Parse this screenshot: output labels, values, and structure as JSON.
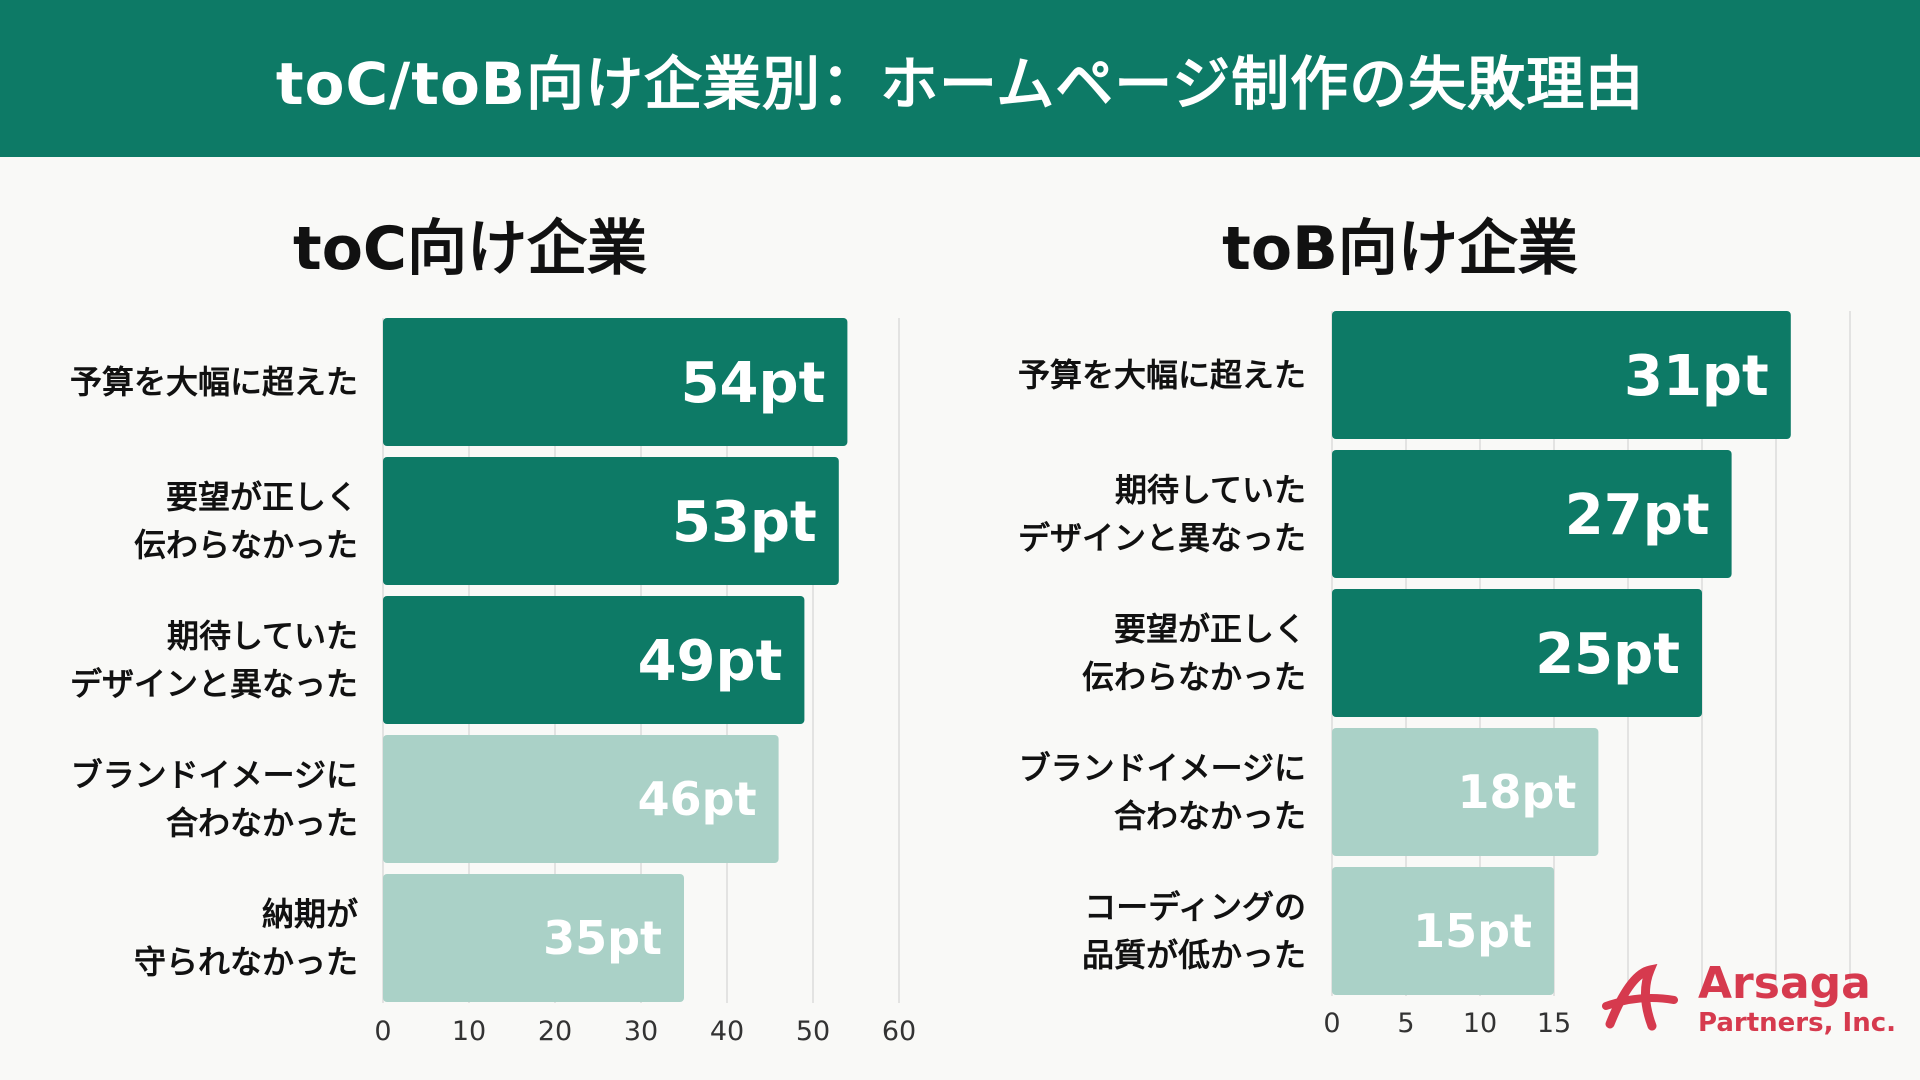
{
  "header": {
    "title": "toC/toB向け企業別：ホームページ制作の失敗理由"
  },
  "colors": {
    "header_bg": "#0d7a66",
    "bar_dark": "#0d7a66",
    "bar_light": "#aad1c7",
    "logo": "#d63a4e"
  },
  "logo": {
    "name": "Arsaga",
    "sub": "Partners, Inc."
  },
  "chart_data": [
    {
      "type": "bar",
      "orientation": "horizontal",
      "title": "toC向け企業",
      "categories": [
        [
          "予算を大幅に超えた"
        ],
        [
          "要望が正しく",
          "伝わらなかった"
        ],
        [
          "期待していた",
          "デザインと異なった"
        ],
        [
          "ブランドイメージに",
          "合わなかった"
        ],
        [
          "納期が",
          "守られなかった"
        ]
      ],
      "values": [
        54,
        53,
        49,
        46,
        35
      ],
      "value_labels": [
        "54pt",
        "53pt",
        "49pt",
        "46pt",
        "35pt"
      ],
      "highlight": [
        true,
        true,
        true,
        false,
        false
      ],
      "xlim": [
        0,
        60
      ],
      "xticks": [
        0,
        10,
        20,
        30,
        40,
        50,
        60
      ],
      "grid": true
    },
    {
      "type": "bar",
      "orientation": "horizontal",
      "title": "toB向け企業",
      "categories": [
        [
          "予算を大幅に超えた"
        ],
        [
          "期待していた",
          "デザインと異なった"
        ],
        [
          "要望が正しく",
          "伝わらなかった"
        ],
        [
          "ブランドイメージに",
          "合わなかった"
        ],
        [
          "コーディングの",
          "品質が低かった"
        ]
      ],
      "values": [
        31,
        27,
        25,
        18,
        15
      ],
      "value_labels": [
        "31pt",
        "27pt",
        "25pt",
        "18pt",
        "15pt"
      ],
      "highlight": [
        true,
        true,
        true,
        false,
        false
      ],
      "xlim": [
        0,
        35
      ],
      "xticks": [
        0,
        5,
        10,
        15
      ],
      "grid": true
    }
  ]
}
